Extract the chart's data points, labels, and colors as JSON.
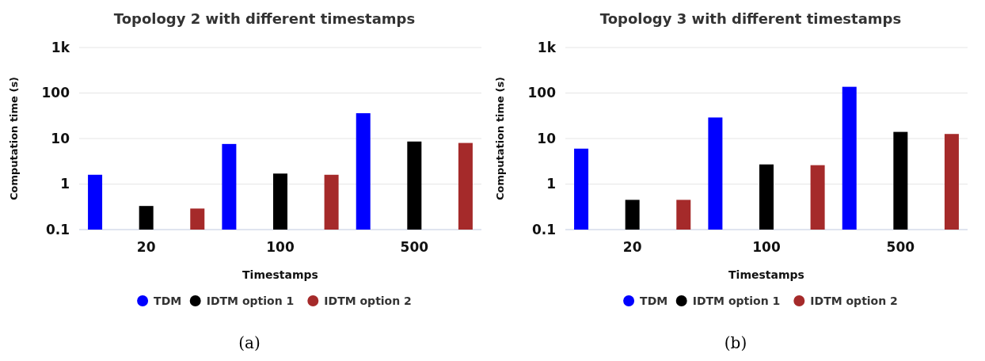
{
  "chart_data": [
    {
      "type": "bar",
      "title": "Topology 2 with different timestamps",
      "xlabel": "Timestamps",
      "ylabel": "Computation time (s)",
      "categories": [
        "20",
        "100",
        "500"
      ],
      "series": [
        {
          "name": "TDM",
          "color": "#0000ff",
          "values": [
            1.6,
            7.6,
            36
          ]
        },
        {
          "name": "IDTM option 1",
          "color": "#000000",
          "values": [
            0.33,
            1.7,
            8.6
          ]
        },
        {
          "name": "IDTM option 2",
          "color": "#a52a2a",
          "values": [
            0.29,
            1.6,
            8.0
          ]
        }
      ],
      "log": true,
      "ylim": [
        0.1,
        1000
      ],
      "yticks": [
        0.1,
        1,
        10,
        100,
        {
          "value": 1000,
          "label": "1k"
        }
      ],
      "grid": "y",
      "legend": "bottom",
      "annotations": [
        "(a)"
      ]
    },
    {
      "type": "bar",
      "title": "Topology 3 with different timestamps",
      "xlabel": "Timestamps",
      "ylabel": "Computation time (s)",
      "categories": [
        "20",
        "100",
        "500"
      ],
      "series": [
        {
          "name": "TDM",
          "color": "#0000ff",
          "values": [
            6.0,
            29,
            137
          ]
        },
        {
          "name": "IDTM option 1",
          "color": "#000000",
          "values": [
            0.45,
            2.7,
            14
          ]
        },
        {
          "name": "IDTM option 2",
          "color": "#a52a2a",
          "values": [
            0.45,
            2.6,
            12.6
          ]
        }
      ],
      "log": true,
      "ylim": [
        0.1,
        1000
      ],
      "yticks": [
        0.1,
        1,
        10,
        100,
        {
          "value": 1000,
          "label": "1k"
        }
      ],
      "grid": "y",
      "legend": "bottom",
      "annotations": [
        "(b)"
      ]
    }
  ]
}
